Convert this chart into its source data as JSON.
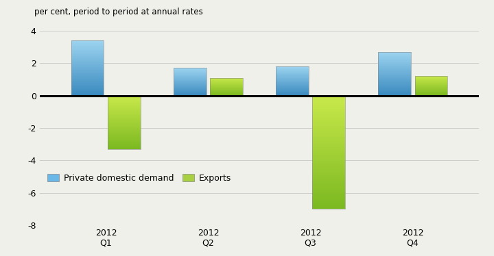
{
  "categories": [
    "2012\nQ1",
    "2012\nQ2",
    "2012\nQ3",
    "2012\nQ4"
  ],
  "private_demand": [
    3.4,
    1.7,
    1.8,
    2.7
  ],
  "exports": [
    -3.3,
    1.1,
    -7.0,
    1.2
  ],
  "bar_width": 0.32,
  "ylim": [
    -8,
    4
  ],
  "yticks": [
    -8,
    -6,
    -4,
    -2,
    0,
    2,
    4
  ],
  "ylabel": "per cent, period to period at annual rates",
  "legend_labels": [
    "Private domestic demand",
    "Exports"
  ],
  "blue_top": "#9dd4f0",
  "blue_bottom": "#3a8abf",
  "green_top": "#c8e84a",
  "green_bottom": "#7ab820",
  "background_color": "#f0f0eb",
  "grid_color": "#cccccc",
  "figwidth": 7.2,
  "figheight": 3.74,
  "dpi": 100
}
